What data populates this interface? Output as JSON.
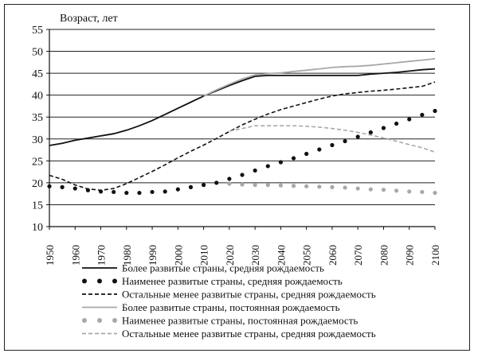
{
  "chart_data": {
    "type": "line",
    "ylabel": "Возраст, лет",
    "xlabel": "",
    "title": "",
    "xlim": [
      1950,
      2100
    ],
    "ylim": [
      10,
      55
    ],
    "yticks": [
      10,
      15,
      20,
      25,
      30,
      35,
      40,
      45,
      50,
      55
    ],
    "xticks": [
      1950,
      1960,
      1970,
      1980,
      1990,
      2000,
      2010,
      2020,
      2030,
      2040,
      2050,
      2060,
      2070,
      2080,
      2090,
      2100
    ],
    "grid": "horizontal",
    "legend_position": "bottom",
    "series": [
      {
        "name": "Более развитые страны, средняя рождаемость",
        "style": "solid",
        "color": "#111111",
        "x": [
          1950,
          1955,
          1960,
          1965,
          1970,
          1975,
          1980,
          1985,
          1990,
          1995,
          2000,
          2005,
          2010,
          2015,
          2020,
          2025,
          2030,
          2035,
          2040,
          2045,
          2050,
          2055,
          2060,
          2065,
          2070,
          2075,
          2080,
          2085,
          2090,
          2095,
          2100
        ],
        "y": [
          28.5,
          29.0,
          29.7,
          30.2,
          30.7,
          31.2,
          32.0,
          33.0,
          34.2,
          35.6,
          37.0,
          38.4,
          39.8,
          41.0,
          42.2,
          43.3,
          44.3,
          44.5,
          44.5,
          44.5,
          44.5,
          44.5,
          44.5,
          44.5,
          44.5,
          44.8,
          45.0,
          45.2,
          45.5,
          45.8,
          46.0
        ]
      },
      {
        "name": "Наименее развитые страны, средняя рождаемость",
        "style": "dots",
        "color": "#111111",
        "x": [
          1950,
          1955,
          1960,
          1965,
          1970,
          1975,
          1980,
          1985,
          1990,
          1995,
          2000,
          2005,
          2010,
          2015,
          2020,
          2025,
          2030,
          2035,
          2040,
          2045,
          2050,
          2055,
          2060,
          2065,
          2070,
          2075,
          2080,
          2085,
          2090,
          2095,
          2100
        ],
        "y": [
          19.2,
          19.0,
          18.7,
          18.3,
          18.0,
          17.9,
          17.7,
          17.7,
          17.9,
          18.0,
          18.5,
          19.0,
          19.5,
          20.0,
          20.9,
          21.8,
          22.8,
          23.8,
          24.7,
          25.6,
          26.6,
          27.6,
          28.6,
          29.5,
          30.5,
          31.5,
          32.5,
          33.5,
          34.5,
          35.5,
          36.4
        ]
      },
      {
        "name": "Остальные менее развитые страны, средняя рождаемость",
        "style": "dashed",
        "color": "#111111",
        "x": [
          1950,
          1955,
          1960,
          1965,
          1970,
          1975,
          1980,
          1985,
          1990,
          1995,
          2000,
          2005,
          2010,
          2015,
          2020,
          2025,
          2030,
          2035,
          2040,
          2045,
          2050,
          2055,
          2060,
          2065,
          2070,
          2075,
          2080,
          2085,
          2090,
          2095,
          2100
        ],
        "y": [
          21.7,
          20.8,
          19.5,
          18.6,
          18.3,
          18.7,
          19.8,
          21.2,
          22.6,
          24.1,
          25.7,
          27.2,
          28.6,
          30.1,
          31.7,
          33.2,
          34.5,
          35.7,
          36.7,
          37.5,
          38.3,
          39.1,
          39.8,
          40.3,
          40.6,
          40.9,
          41.1,
          41.4,
          41.7,
          42.0,
          43.0
        ]
      },
      {
        "name": "Более развитые страны, постоянная рождаемость",
        "style": "solid",
        "color": "#a8a8a8",
        "x": [
          2010,
          2015,
          2020,
          2025,
          2030,
          2035,
          2040,
          2045,
          2050,
          2055,
          2060,
          2065,
          2070,
          2075,
          2080,
          2085,
          2090,
          2095,
          2100
        ],
        "y": [
          39.8,
          41.2,
          42.5,
          43.7,
          44.6,
          44.9,
          45.1,
          45.4,
          45.7,
          46.0,
          46.3,
          46.5,
          46.6,
          46.8,
          47.1,
          47.4,
          47.7,
          48.0,
          48.3
        ]
      },
      {
        "name": "Наименее развитые страны, постоянная рождаемость",
        "style": "dots",
        "color": "#a8a8a8",
        "x": [
          2020,
          2025,
          2030,
          2035,
          2040,
          2045,
          2050,
          2055,
          2060,
          2065,
          2070,
          2075,
          2080,
          2085,
          2090,
          2095,
          2100
        ],
        "y": [
          19.8,
          19.6,
          19.5,
          19.5,
          19.4,
          19.3,
          19.2,
          19.1,
          19.0,
          18.9,
          18.7,
          18.5,
          18.4,
          18.2,
          18.0,
          17.9,
          17.7
        ]
      },
      {
        "name": "Остальные менее развитые страны, средняя рождаемость",
        "style": "dashed",
        "color": "#a8a8a8",
        "x": [
          2020,
          2025,
          2030,
          2035,
          2040,
          2045,
          2050,
          2055,
          2060,
          2065,
          2070,
          2075,
          2080,
          2085,
          2090,
          2095,
          2100
        ],
        "y": [
          31.8,
          32.4,
          33.0,
          33.0,
          33.0,
          33.0,
          32.9,
          32.7,
          32.4,
          32.0,
          31.5,
          30.9,
          30.2,
          29.5,
          28.7,
          28.0,
          27.0
        ]
      }
    ]
  }
}
